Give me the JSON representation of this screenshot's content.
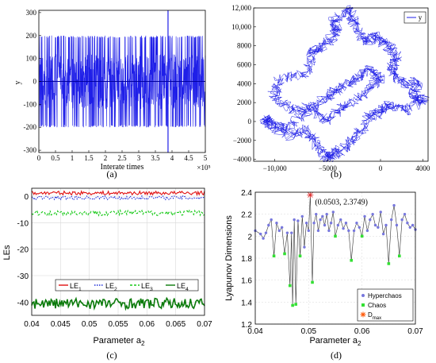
{
  "panel_labels": {
    "a": "(a)",
    "b": "(b)",
    "c": "(c)",
    "d": "(d)"
  },
  "chart_data": [
    {
      "panel": "a",
      "type": "line",
      "title": "",
      "xlabel": "Interate times",
      "ylabel": "y",
      "xlim": [
        0,
        500000
      ],
      "ylim": [
        -310,
        310
      ],
      "x_ticks": [
        0,
        0.5,
        1,
        1.5,
        2,
        2.5,
        3,
        3.5,
        4,
        4.5,
        5
      ],
      "x_tick_labels": [
        "0",
        "0.5",
        "1",
        "1.5",
        "2",
        "2.5",
        "3",
        "3.5",
        "4",
        "4.5",
        "5"
      ],
      "x_multiplier_label": "×10⁵",
      "y_ticks": [
        300,
        200,
        100,
        0,
        -100,
        -200,
        -300
      ],
      "y_tick_labels": [
        "300",
        "200",
        "100",
        "0",
        "-100",
        "-200",
        "-300"
      ],
      "series": [
        {
          "color": "#1f1fe8",
          "envelope": [
            -200,
            200
          ],
          "mean": 0,
          "spike": {
            "x": 388000,
            "y_top": 310,
            "y_bottom": -310
          }
        }
      ]
    },
    {
      "panel": "b",
      "type": "line",
      "title": "",
      "xlabel": "",
      "ylabel": "",
      "xlim": [
        -12000,
        4500
      ],
      "ylim": [
        -4200,
        12000
      ],
      "x_ticks": [
        -10000,
        -5000,
        0,
        4000
      ],
      "x_tick_labels": [
        "−10,000",
        "−5000",
        "0",
        "4000"
      ],
      "y_ticks": [
        12000,
        10000,
        8000,
        6000,
        4000,
        2000,
        0,
        -2000,
        -4000
      ],
      "y_tick_labels": [
        "12,000",
        "10,000",
        "8000",
        "6000",
        "4000",
        "2000",
        "0",
        "−2000",
        "−4000"
      ],
      "legend": {
        "position": "top-right",
        "entries": [
          "y"
        ]
      },
      "series": [
        {
          "name": "y",
          "color": "#1f1fe8",
          "path": [
            [
              -5000,
              0
            ],
            [
              -6500,
              1500
            ],
            [
              -8500,
              1200
            ],
            [
              -10200,
              2500
            ],
            [
              -9500,
              4500
            ],
            [
              -7000,
              5000
            ],
            [
              -6500,
              7500
            ],
            [
              -5500,
              8000
            ],
            [
              -4000,
              9500
            ],
            [
              -4500,
              10500
            ],
            [
              -3000,
              11900
            ],
            [
              -2500,
              10500
            ],
            [
              -1500,
              8500
            ],
            [
              -500,
              9000
            ],
            [
              500,
              8200
            ],
            [
              1500,
              6800
            ],
            [
              1000,
              5500
            ],
            [
              2000,
              4000
            ],
            [
              3500,
              4200
            ],
            [
              3000,
              2500
            ],
            [
              4200,
              2300
            ],
            [
              2500,
              1200
            ],
            [
              1000,
              1800
            ],
            [
              0,
              1000
            ],
            [
              -1000,
              500
            ],
            [
              -2000,
              -1200
            ],
            [
              -3000,
              -2500
            ],
            [
              -4500,
              -3500
            ],
            [
              -5000,
              -3800
            ],
            [
              -6000,
              -2500
            ],
            [
              -7000,
              -800
            ],
            [
              -8500,
              -1500
            ],
            [
              -10500,
              -300
            ],
            [
              -11000,
              400
            ],
            [
              -9000,
              -800
            ],
            [
              -7000,
              1000
            ],
            [
              -5000,
              2500
            ],
            [
              -4000,
              3500
            ],
            [
              -2500,
              4500
            ],
            [
              -1000,
              5500
            ],
            [
              0,
              4500
            ],
            [
              -1500,
              3000
            ],
            [
              -3500,
              1500
            ],
            [
              -5000,
              0
            ]
          ]
        }
      ]
    },
    {
      "panel": "c",
      "type": "line",
      "title": "",
      "xlabel": "Parameter a₂",
      "ylabel": "LEs",
      "xlim": [
        0.04,
        0.07
      ],
      "ylim": [
        -45,
        3
      ],
      "x_ticks": [
        0.04,
        0.045,
        0.05,
        0.055,
        0.06,
        0.065,
        0.07
      ],
      "x_tick_labels": [
        "0.04",
        "0.045",
        "0.05",
        "0.055",
        "0.06",
        "0.065",
        "0.07"
      ],
      "y_ticks": [
        0,
        -10,
        -20,
        -30,
        -40
      ],
      "y_tick_labels": [
        "0",
        "-10",
        "-20",
        "-30",
        "-40"
      ],
      "grid": true,
      "legend": {
        "position": "center-left"
      },
      "series": [
        {
          "name": "LE",
          "sub": "1",
          "color": "#e01010",
          "dash": "solid",
          "mean": 1.2,
          "noise": 0.7
        },
        {
          "name": "LE",
          "sub": "2",
          "color": "#1f2fd8",
          "dash": "dotted",
          "mean": -0.6,
          "noise": 0.7
        },
        {
          "name": "LE",
          "sub": "3",
          "color": "#19c919",
          "dash": "dashed",
          "mean": -6.3,
          "noise": 1.0
        },
        {
          "name": "LE",
          "sub": "4",
          "color": "#0a7a0a",
          "dash": "solid",
          "mean": -40.5,
          "noise": 2.0
        }
      ]
    },
    {
      "panel": "d",
      "type": "scatter",
      "title": "",
      "xlabel": "Parameter a₂",
      "ylabel": "Lyapunov Dimensions",
      "xlim": [
        0.04,
        0.07
      ],
      "ylim": [
        1.2,
        2.4
      ],
      "x_ticks": [
        0.04,
        0.05,
        0.06,
        0.07
      ],
      "x_tick_labels": [
        "0.04",
        "0.05",
        "0.06",
        "0.07"
      ],
      "y_ticks": [
        2.4,
        2.2,
        2.0,
        1.8,
        1.6,
        1.4,
        1.2
      ],
      "y_tick_labels": [
        "2.4",
        "2.2",
        "2",
        "1.8",
        "1.6",
        "1.4",
        "1.2"
      ],
      "grid": true,
      "annotation": {
        "text": "(0.0503, 2.3749)",
        "x": 0.0503,
        "y": 2.3749
      },
      "legend": {
        "position": "bottom-right",
        "entries": [
          {
            "name": "Hyperchaos",
            "color": "#7777dd",
            "marker": "star"
          },
          {
            "name": "Chaos",
            "color": "#33e033",
            "marker": "square"
          },
          {
            "name": "D",
            "sub": "max",
            "color": "#ff5500",
            "marker": "hexstar"
          }
        ]
      },
      "points": [
        [
          0.04,
          2.05
        ],
        [
          0.041,
          2.02
        ],
        [
          0.0415,
          1.98
        ],
        [
          0.042,
          2.03
        ],
        [
          0.0425,
          2.1
        ],
        [
          0.043,
          2.15
        ],
        [
          0.0435,
          1.82
        ],
        [
          0.044,
          2.12
        ],
        [
          0.0445,
          2.05
        ],
        [
          0.045,
          2.08
        ],
        [
          0.0455,
          1.84
        ],
        [
          0.046,
          2.03
        ],
        [
          0.0465,
          1.55
        ],
        [
          0.0468,
          2.03
        ],
        [
          0.047,
          1.37
        ],
        [
          0.0473,
          2.15
        ],
        [
          0.0476,
          1.38
        ],
        [
          0.048,
          2.14
        ],
        [
          0.0484,
          1.82
        ],
        [
          0.0488,
          2.18
        ],
        [
          0.0492,
          1.9
        ],
        [
          0.0496,
          2.12
        ],
        [
          0.05,
          2.05
        ],
        [
          0.0503,
          2.3749
        ],
        [
          0.0507,
          1.58
        ],
        [
          0.051,
          2.12
        ],
        [
          0.0514,
          2.2
        ],
        [
          0.0518,
          2.05
        ],
        [
          0.0522,
          2.15
        ],
        [
          0.0526,
          2.18
        ],
        [
          0.053,
          2.1
        ],
        [
          0.0534,
          2.2
        ],
        [
          0.0538,
          2.05
        ],
        [
          0.0542,
          2.12
        ],
        [
          0.0546,
          2.22
        ],
        [
          0.055,
          2.0
        ],
        [
          0.0555,
          2.1
        ],
        [
          0.056,
          2.15
        ],
        [
          0.0565,
          2.07
        ],
        [
          0.057,
          2.12
        ],
        [
          0.0575,
          2.05
        ],
        [
          0.058,
          1.78
        ],
        [
          0.0585,
          2.05
        ],
        [
          0.059,
          2.12
        ],
        [
          0.0595,
          2.08
        ],
        [
          0.06,
          2.0
        ],
        [
          0.0605,
          2.18
        ],
        [
          0.061,
          2.05
        ],
        [
          0.0615,
          2.15
        ],
        [
          0.062,
          2.2
        ],
        [
          0.0625,
          2.1
        ],
        [
          0.063,
          2.08
        ],
        [
          0.0635,
          2.22
        ],
        [
          0.064,
          2.02
        ],
        [
          0.0645,
          2.1
        ],
        [
          0.065,
          1.75
        ],
        [
          0.0655,
          2.15
        ],
        [
          0.066,
          2.28
        ],
        [
          0.0665,
          2.1
        ],
        [
          0.067,
          1.82
        ],
        [
          0.0675,
          2.15
        ],
        [
          0.068,
          2.2
        ],
        [
          0.0685,
          2.12
        ],
        [
          0.069,
          2.08
        ],
        [
          0.0695,
          2.1
        ],
        [
          0.07,
          2.06
        ]
      ],
      "chaos_points": [
        [
          0.0435,
          1.82
        ],
        [
          0.0455,
          1.84
        ],
        [
          0.0465,
          1.55
        ],
        [
          0.047,
          1.37
        ],
        [
          0.0476,
          1.38
        ],
        [
          0.0484,
          1.82
        ],
        [
          0.0507,
          1.58
        ],
        [
          0.058,
          1.78
        ],
        [
          0.065,
          1.75
        ],
        [
          0.067,
          1.82
        ],
        [
          0.055,
          2.0
        ],
        [
          0.06,
          2.0
        ]
      ]
    }
  ]
}
